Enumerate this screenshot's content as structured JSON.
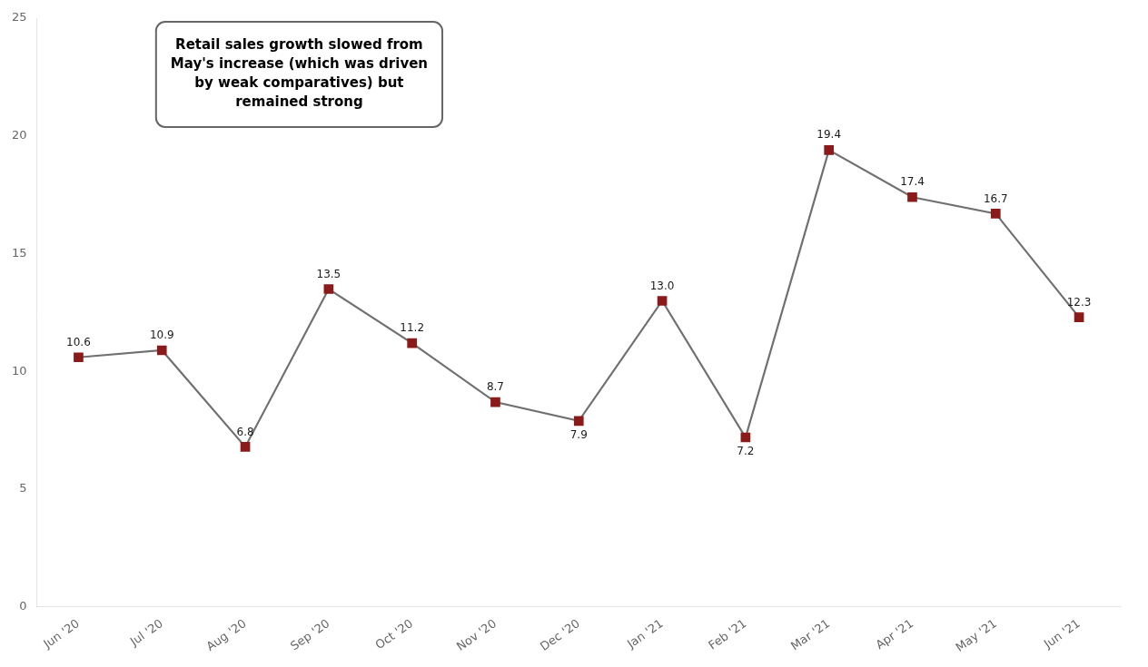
{
  "chart_data": {
    "type": "line",
    "categories": [
      "Jun '20",
      "Jul '20",
      "Aug '20",
      "Sep '20",
      "Oct '20",
      "Nov '20",
      "Dec '20",
      "Jan '21",
      "Feb '21",
      "Mar '21",
      "Apr '21",
      "May '21",
      "Jun '21"
    ],
    "values": [
      10.6,
      10.9,
      6.8,
      13.5,
      11.2,
      8.7,
      7.9,
      13.0,
      7.2,
      19.4,
      17.4,
      16.7,
      12.3
    ],
    "value_labels": [
      "10.6",
      "10.9",
      "6.8",
      "13.5",
      "11.2",
      "8.7",
      "7.9",
      "13.0",
      "7.2",
      "19.4",
      "17.4",
      "16.7",
      "12.3"
    ],
    "data_labels": true,
    "color": "#707070",
    "colors": [
      "#8B1A1A",
      "#8B1A1A",
      "#8B1A1A",
      "#8B1A1A",
      "#8B1A1A",
      "#8B1A1A",
      "#8B1A1A",
      "#8B1A1A",
      "#8B1A1A",
      "#8B1A1A",
      "#8B1A1A",
      "#8B1A1A",
      "#8B1A1A"
    ],
    "marker": "square",
    "ylim": [
      0,
      25
    ],
    "yticks": [
      0,
      5,
      10,
      15,
      20,
      25
    ],
    "grid": false,
    "annotation": "Retail sales growth slowed from\nMay's increase (which was driven\nby weak comparatives) but\nremained strong"
  }
}
